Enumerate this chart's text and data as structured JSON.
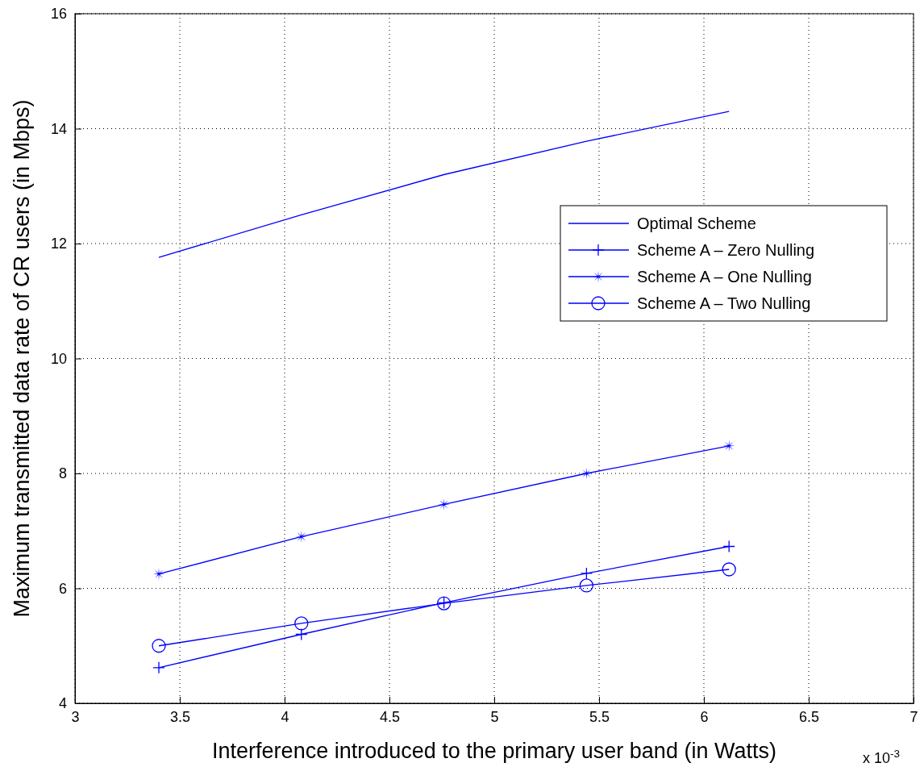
{
  "chart_data": {
    "type": "line",
    "xlabel": "Interference introduced to the primary user band (in Watts)",
    "ylabel": "Maximum transmitted data rate of CR users (in Mbps)",
    "annotations": [
      "x 10$^{-3}$"
    ],
    "x": [
      3.4,
      4.08,
      4.76,
      5.44,
      6.12
    ],
    "series": [
      {
        "name": "Optimal Scheme",
        "color": "#0000ff",
        "marker": "none",
        "values": [
          11.76,
          12.5,
          13.2,
          13.78,
          14.3
        ]
      },
      {
        "name": "Scheme A – Zero Nulling",
        "color": "#0000ff",
        "marker": "cross",
        "values": [
          4.62,
          5.2,
          5.75,
          6.26,
          6.73
        ]
      },
      {
        "name": "Scheme A – One Nulling",
        "color": "#0000ff",
        "marker": "star",
        "values": [
          6.25,
          6.9,
          7.46,
          8.0,
          8.48
        ]
      },
      {
        "name": "Scheme A – Two Nulling",
        "color": "#0000ff",
        "marker": "circle",
        "values": [
          5.0,
          5.39,
          5.74,
          6.05,
          6.33
        ]
      }
    ],
    "xlim": [
      3,
      7
    ],
    "xticks": [
      3,
      3.5,
      4,
      4.5,
      5,
      5.5,
      6,
      6.5,
      7
    ],
    "ylim": [
      4,
      16
    ],
    "yticks": [
      4,
      6,
      8,
      10,
      12,
      14,
      16
    ],
    "grid": true,
    "legend": "right",
    "line_style": "solid"
  }
}
